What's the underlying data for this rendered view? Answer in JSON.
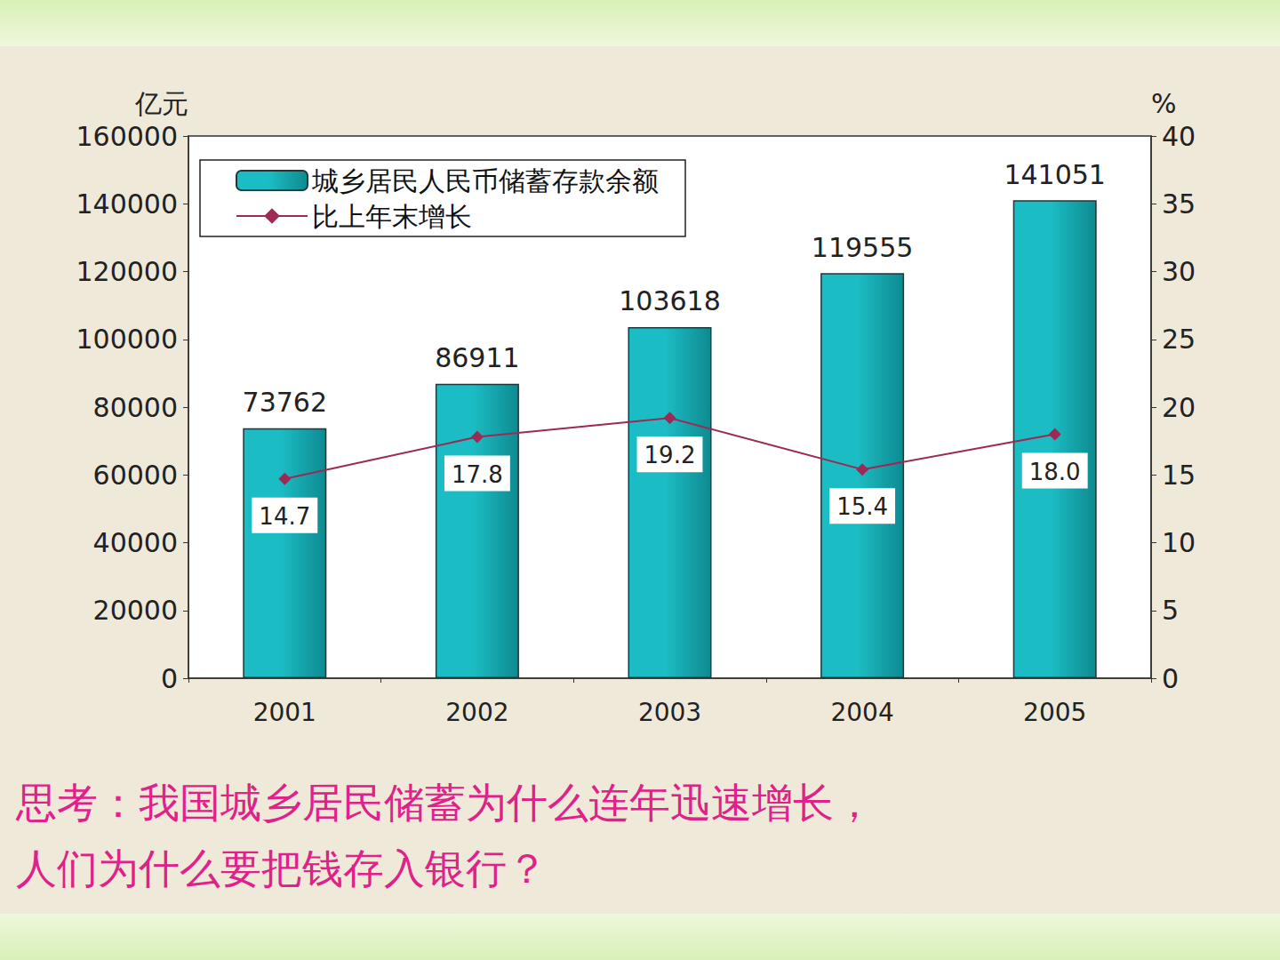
{
  "chart_data": {
    "type": "bar",
    "ylabel": "亿元",
    "y2label": "%",
    "categories": [
      "2001",
      "2002",
      "2003",
      "2004",
      "2005"
    ],
    "series": [
      {
        "name": "城乡居民人民币储蓄存款余额",
        "type": "bar",
        "color": "#1cbcc4",
        "values": [
          73762,
          86911,
          103618,
          119555,
          141051
        ]
      },
      {
        "name": "比上年末增长",
        "type": "line",
        "axis": "y2",
        "color": "#9c2a55",
        "marker": "diamond",
        "values": [
          14.7,
          17.8,
          19.2,
          15.4,
          18.0
        ],
        "value_labels": [
          "14.7",
          "17.8",
          "19.2",
          "15.4",
          "18.0"
        ]
      }
    ],
    "ylim": [
      0,
      160000
    ],
    "yticks": [
      0,
      20000,
      40000,
      60000,
      80000,
      100000,
      120000,
      140000,
      160000
    ],
    "y2lim": [
      0,
      40
    ],
    "y2ticks": [
      0,
      5,
      10,
      15,
      20,
      25,
      30,
      35,
      40
    ],
    "data_labels": true,
    "legend": "upper left",
    "grid": false,
    "annotations": [
      "思考：我国城乡居民储蓄为什么连年迅速增长，",
      "人们为什么要把钱存入银行？"
    ]
  }
}
